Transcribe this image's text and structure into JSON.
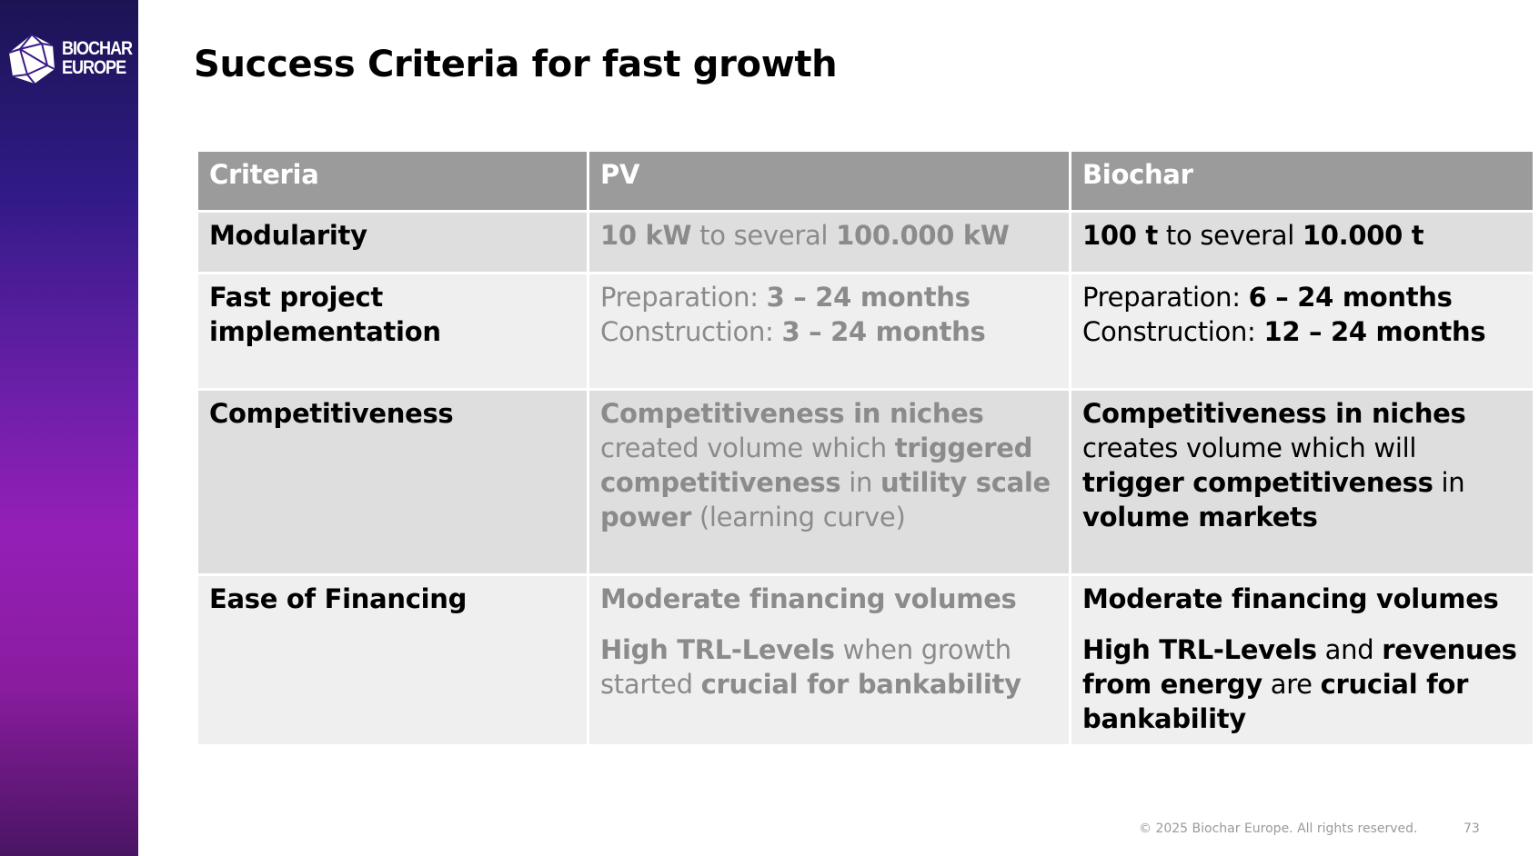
{
  "brand": {
    "logo_line1": "BIOCHAR",
    "logo_line2": "EUROPE"
  },
  "title": "Success Criteria for fast growth",
  "table": {
    "headers": [
      "Criteria",
      "PV",
      "Biochar"
    ],
    "rows": [
      {
        "criteria": "Modularity",
        "pv": {
          "b1": "10 kW",
          "t1": " to several ",
          "b2": "100.000 kW"
        },
        "biochar": {
          "b1": "100 t",
          "t1": " to several ",
          "b2": "10.000 t"
        }
      },
      {
        "criteria": "Fast project implementation",
        "pv": {
          "prep_label": "Preparation: ",
          "prep_value": "3 – 24 months",
          "cons_label": "Construction: ",
          "cons_value": "3 – 24 months"
        },
        "biochar": {
          "prep_label": "Preparation: ",
          "prep_value": "6 – 24 months",
          "cons_label": "Construction: ",
          "cons_value": "12 – 24 months"
        }
      },
      {
        "criteria": "Competitiveness",
        "pv": {
          "b1": "Competitiveness in niches",
          "t1": " created volume which ",
          "b2": "triggered competitiveness",
          "t2": " in ",
          "b3": "utility scale power",
          "t3": " (learning curve)"
        },
        "biochar": {
          "b1": "Competitiveness in niches",
          "t1": " creates volume which will ",
          "b2": "trigger competitiveness",
          "t2": " in ",
          "b3": "volume markets"
        }
      },
      {
        "criteria": "Ease of Financing",
        "pv": {
          "p1": "Moderate financing volumes",
          "b1": "High TRL-Levels",
          "t1": " when growth started ",
          "b2": "crucial for bankability"
        },
        "biochar": {
          "p1": "Moderate financing volumes",
          "b1": "High TRL-Levels",
          "t1": " and ",
          "b2": "revenues from energy",
          "t2": " are ",
          "b3": "crucial for bankability"
        }
      }
    ]
  },
  "footer": {
    "copyright": "© 2025 Biochar Europe. All rights reserved.",
    "page_number": "73"
  },
  "colors": {
    "header_bg": "#9b9b9b",
    "row_dark": "#dedede",
    "row_light": "#efefef",
    "pv_text": "#8b8b8b",
    "sidebar_top": "#1b1453",
    "sidebar_mid": "#951fb7"
  }
}
